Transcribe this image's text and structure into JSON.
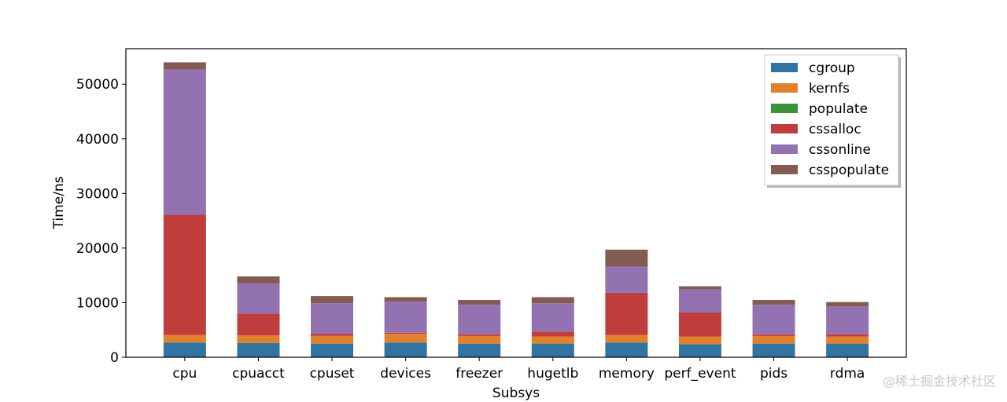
{
  "chart_data": {
    "type": "bar",
    "stacked": true,
    "title": "",
    "xlabel": "Subsys",
    "ylabel": "Time/ns",
    "ylim": [
      0,
      56500
    ],
    "yticks": [
      0,
      10000,
      20000,
      30000,
      40000,
      50000
    ],
    "categories": [
      "cpu",
      "cpuacct",
      "cpuset",
      "devices",
      "freezer",
      "hugetlb",
      "memory",
      "perf_event",
      "pids",
      "rdma"
    ],
    "series": [
      {
        "name": "cgroup",
        "color": "#3274a1",
        "values": [
          2700,
          2600,
          2500,
          2700,
          2500,
          2500,
          2700,
          2400,
          2500,
          2500
        ]
      },
      {
        "name": "kernfs",
        "color": "#e1812c",
        "values": [
          1400,
          1400,
          1400,
          1600,
          1400,
          1300,
          1400,
          1400,
          1400,
          1300
        ]
      },
      {
        "name": "populate",
        "color": "#3a923a",
        "values": [
          0,
          0,
          0,
          0,
          0,
          0,
          0,
          0,
          0,
          0
        ]
      },
      {
        "name": "cssalloc",
        "color": "#c03d3e",
        "values": [
          22000,
          4000,
          400,
          200,
          300,
          900,
          7700,
          4400,
          300,
          400
        ]
      },
      {
        "name": "cssonline",
        "color": "#9372b2",
        "values": [
          26600,
          5500,
          5600,
          5700,
          5400,
          5200,
          4800,
          4200,
          5400,
          5100
        ]
      },
      {
        "name": "csspopulate",
        "color": "#845b53",
        "values": [
          1300,
          1300,
          1300,
          800,
          900,
          1100,
          3100,
          600,
          900,
          800
        ]
      }
    ],
    "grid": false,
    "legend_position": "top-right"
  },
  "watermark": "@稀土掘金技术社区"
}
